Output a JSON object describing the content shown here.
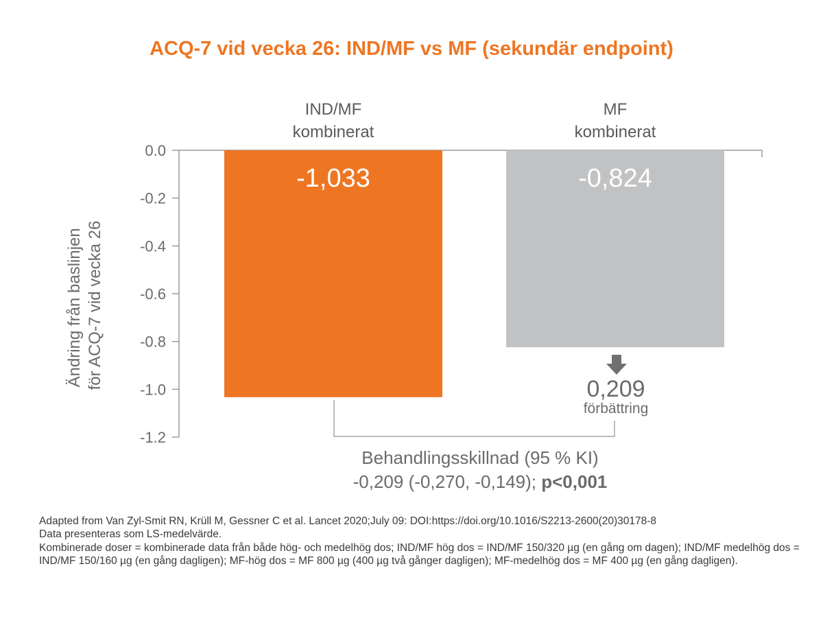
{
  "chart_data": {
    "type": "bar",
    "title": "ACQ-7 vid vecka 26: IND/MF vs MF (sekundär endpoint)",
    "ylabel_lines": [
      "Ändring från baslinjen",
      "för ACQ-7 vid vecka 26"
    ],
    "ylim": [
      -1.2,
      0.0
    ],
    "yticks": [
      0.0,
      -0.2,
      -0.4,
      -0.6,
      -0.8,
      -1.0,
      -1.2
    ],
    "ytick_labels": [
      "0.0",
      "-0.2",
      "-0.4",
      "-0.6",
      "-0.8",
      "-1.0",
      "-1.2"
    ],
    "categories": [
      {
        "line1": "IND/MF",
        "line2": "kombinerat"
      },
      {
        "line1": "MF",
        "line2": "kombinerat"
      }
    ],
    "values": [
      -1.033,
      -0.824
    ],
    "value_labels": [
      "-1,033",
      "-0,824"
    ],
    "colors": [
      "#ee7623",
      "#c1c2c4"
    ],
    "title_color": "#ee7623",
    "annotation": {
      "arrow": "arrow-down-icon",
      "value": "0,209",
      "label": "förbättring",
      "difference_line1": "Behandlingsskillnad (95 % KI)",
      "difference_line2": "-0,209 (-0,270, -0,149); ",
      "p_value": "p<0,001"
    },
    "grid": false
  },
  "footnotes": [
    "Adapted from Van Zyl-Smit RN, Krüll M, Gessner C et al. Lancet 2020;July 09: DOI:https://doi.org/10.1016/S2213-2600(20)30178-8",
    "Data presenteras som LS-medelvärde.",
    "Kombinerade doser = kombinerade data från både hög- och medelhög dos; IND/MF hög dos = IND/MF 150/320 µg (en gång om dagen); IND/MF medelhög dos = IND/MF 150/160 µg (en gång dagligen); MF-hög dos = MF 800 µg (400 µg två gånger dagligen); MF-medelhög dos = MF 400 µg (en gång dagligen)."
  ]
}
